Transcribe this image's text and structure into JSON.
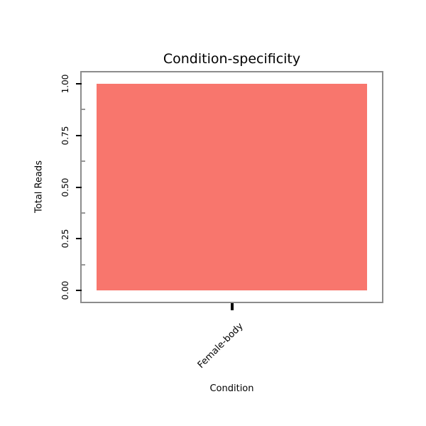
{
  "chart_data": {
    "type": "bar",
    "title": "Condition-specificity",
    "xlabel": "Condition",
    "ylabel": "Total Reads",
    "categories": [
      "Female-body"
    ],
    "values": [
      1.0
    ],
    "ylim": [
      0,
      1
    ],
    "yticks": [
      "0.00",
      "0.25",
      "0.50",
      "0.75",
      "1.00"
    ],
    "bar_color": "#F8766D",
    "panel_border_color": "#8C8C8C",
    "tick_color": "#000000",
    "grid": "off",
    "legend_position": "none"
  }
}
